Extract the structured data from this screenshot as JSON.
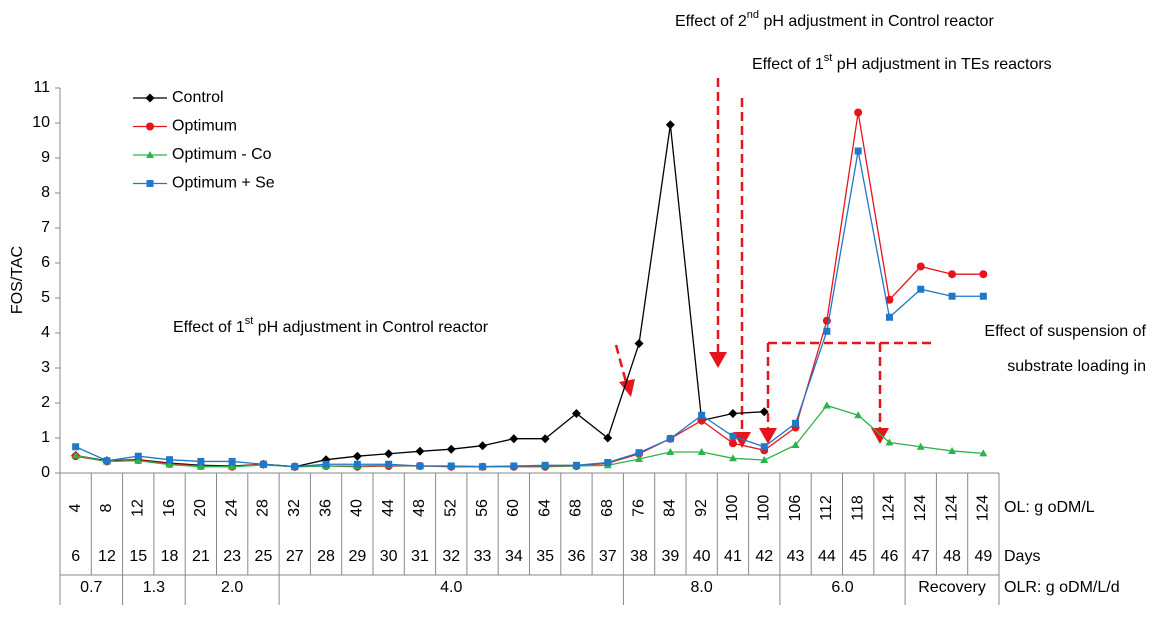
{
  "chart_data": {
    "type": "line",
    "y_label": "FOS/TAC",
    "categories": [
      4,
      8,
      12,
      16,
      20,
      24,
      28,
      32,
      36,
      40,
      44,
      48,
      52,
      56,
      60,
      64,
      68,
      68,
      76,
      84,
      92,
      100,
      100,
      106,
      112,
      118,
      124,
      124,
      124,
      124
    ],
    "days": [
      6,
      12,
      15,
      18,
      21,
      23,
      25,
      27,
      28,
      29,
      30,
      31,
      32,
      33,
      34,
      35,
      36,
      37,
      38,
      39,
      40,
      41,
      42,
      43,
      44,
      45,
      46,
      47,
      48,
      49
    ],
    "olr": [
      "0.7",
      null,
      "1.3",
      null,
      "2.0",
      null,
      null,
      "4.0",
      null,
      null,
      null,
      null,
      null,
      null,
      null,
      null,
      null,
      null,
      "8.0",
      null,
      null,
      null,
      null,
      "6.0",
      null,
      null,
      null,
      "Recovery",
      null,
      null
    ],
    "row_labels": [
      "OL: g oDM/L",
      "Days",
      "OLR: g oDM/L/d"
    ],
    "series": [
      {
        "name": "Control",
        "color": "#000000",
        "marker": "diamond",
        "values": [
          0.5,
          0.35,
          0.38,
          0.28,
          0.22,
          0.2,
          0.25,
          0.18,
          0.38,
          0.48,
          0.55,
          0.62,
          0.68,
          0.78,
          0.98,
          0.98,
          1.7,
          1.0,
          3.7,
          9.95,
          1.5,
          1.7,
          1.75,
          null,
          null,
          null,
          null,
          null,
          null,
          null
        ]
      },
      {
        "name": "Optimum",
        "color": "#e8141b",
        "marker": "circle",
        "values": [
          0.48,
          0.33,
          0.37,
          0.26,
          0.2,
          0.18,
          0.25,
          0.18,
          0.2,
          0.18,
          0.2,
          0.2,
          0.18,
          0.18,
          0.18,
          0.18,
          0.2,
          0.28,
          0.55,
          0.98,
          1.5,
          0.85,
          0.65,
          1.3,
          4.35,
          10.3,
          4.95,
          5.9,
          5.68,
          5.68
        ]
      },
      {
        "name": "Optimum - Co",
        "color": "#2db34a",
        "marker": "triangle",
        "values": [
          0.5,
          0.33,
          0.35,
          0.24,
          0.18,
          0.18,
          0.23,
          0.18,
          0.2,
          0.2,
          0.22,
          0.2,
          0.2,
          0.18,
          0.2,
          0.2,
          0.2,
          0.22,
          0.4,
          0.6,
          0.6,
          0.42,
          0.37,
          0.8,
          1.93,
          1.65,
          0.87,
          0.75,
          0.63,
          0.56
        ]
      },
      {
        "name": "Optimum + Se",
        "color": "#1f78c8",
        "marker": "square",
        "values": [
          0.75,
          0.35,
          0.48,
          0.38,
          0.33,
          0.33,
          0.25,
          0.18,
          0.25,
          0.25,
          0.25,
          0.2,
          0.2,
          0.18,
          0.2,
          0.22,
          0.22,
          0.3,
          0.58,
          0.98,
          1.65,
          1.05,
          0.75,
          1.42,
          4.05,
          9.2,
          4.45,
          5.25,
          5.05,
          5.05
        ]
      }
    ],
    "ylim": [
      0,
      11
    ],
    "yticks": [
      0,
      1,
      2,
      3,
      4,
      5,
      6,
      7,
      8,
      9,
      10,
      11
    ],
    "annotations": [
      {
        "before": "Effect of 2",
        "sup": "nd",
        "after": " pH adjustment in Control reactor"
      },
      {
        "before": "Effect of 1",
        "sup": "st",
        "after": " pH adjustment in TEs reactors"
      },
      {
        "before": "Effect of 1",
        "sup": "st",
        "after": " pH adjustment in Control reactor"
      },
      {
        "lines": [
          "Effect of suspension of",
          "substrate loading in"
        ]
      }
    ]
  }
}
